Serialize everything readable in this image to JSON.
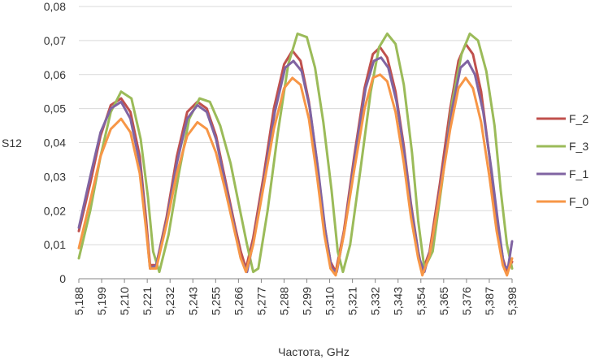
{
  "chart_data": {
    "type": "line",
    "title": "",
    "xlabel": "Частота, GHz",
    "ylabel": "S12",
    "xlim": [
      5.188,
      5.398
    ],
    "ylim": [
      0,
      0.08
    ],
    "yticks": [
      "0",
      "0,01",
      "0,02",
      "0,03",
      "0,04",
      "0,05",
      "0,06",
      "0,07",
      "0,08"
    ],
    "xticks": [
      "5,188",
      "5,199",
      "5,210",
      "5,221",
      "5,232",
      "5,243",
      "5,255",
      "5,266",
      "5,277",
      "5,288",
      "5,299",
      "5,310",
      "5,321",
      "5,332",
      "5,343",
      "5,354",
      "5,365",
      "5,376",
      "5,387",
      "5,398"
    ],
    "grid": "horizontal",
    "legend_position": "right",
    "series": [
      {
        "name": "F_2",
        "color": "#c0504d",
        "x": [
          5.188,
          5.1935,
          5.1985,
          5.2035,
          5.2085,
          5.213,
          5.2175,
          5.2205,
          5.2225,
          5.2255,
          5.2305,
          5.2355,
          5.2405,
          5.2455,
          5.25,
          5.2545,
          5.259,
          5.2635,
          5.2665,
          5.269,
          5.2725,
          5.2775,
          5.2825,
          5.2875,
          5.2915,
          5.2955,
          5.2995,
          5.3035,
          5.307,
          5.31,
          5.3125,
          5.3165,
          5.3215,
          5.3265,
          5.3305,
          5.334,
          5.3375,
          5.3415,
          5.3455,
          5.349,
          5.3525,
          5.3545,
          5.358,
          5.363,
          5.368,
          5.372,
          5.3755,
          5.379,
          5.383,
          5.387,
          5.3905,
          5.3935,
          5.3955,
          5.398
        ],
        "y": [
          0.014,
          0.028,
          0.042,
          0.051,
          0.053,
          0.049,
          0.036,
          0.018,
          0.004,
          0.004,
          0.018,
          0.036,
          0.049,
          0.052,
          0.05,
          0.042,
          0.029,
          0.016,
          0.008,
          0.003,
          0.012,
          0.03,
          0.05,
          0.063,
          0.067,
          0.064,
          0.052,
          0.034,
          0.016,
          0.005,
          0.002,
          0.014,
          0.036,
          0.056,
          0.066,
          0.068,
          0.065,
          0.055,
          0.039,
          0.022,
          0.008,
          0.002,
          0.008,
          0.028,
          0.05,
          0.064,
          0.069,
          0.066,
          0.055,
          0.036,
          0.018,
          0.006,
          0.002,
          0.005
        ]
      },
      {
        "name": "F_3",
        "color": "#9bbb59",
        "x": [
          5.188,
          5.1935,
          5.1985,
          5.2035,
          5.2085,
          5.2135,
          5.218,
          5.2215,
          5.224,
          5.227,
          5.2315,
          5.2365,
          5.2415,
          5.2465,
          5.2515,
          5.2565,
          5.2615,
          5.2655,
          5.2695,
          5.2725,
          5.275,
          5.2795,
          5.2845,
          5.2895,
          5.294,
          5.2985,
          5.3025,
          5.3065,
          5.3105,
          5.3135,
          5.316,
          5.3195,
          5.3245,
          5.3295,
          5.3335,
          5.3375,
          5.3415,
          5.3455,
          5.3495,
          5.3525,
          5.3555,
          5.3595,
          5.364,
          5.369,
          5.3735,
          5.3775,
          5.3815,
          5.3855,
          5.3895,
          5.3925,
          5.3955,
          5.398
        ],
        "y": [
          0.006,
          0.02,
          0.036,
          0.049,
          0.055,
          0.053,
          0.041,
          0.024,
          0.008,
          0.002,
          0.013,
          0.031,
          0.047,
          0.053,
          0.052,
          0.045,
          0.034,
          0.022,
          0.01,
          0.002,
          0.003,
          0.02,
          0.043,
          0.063,
          0.072,
          0.071,
          0.062,
          0.046,
          0.026,
          0.008,
          0.002,
          0.01,
          0.032,
          0.055,
          0.068,
          0.072,
          0.069,
          0.057,
          0.037,
          0.017,
          0.003,
          0.008,
          0.028,
          0.052,
          0.066,
          0.072,
          0.07,
          0.061,
          0.045,
          0.026,
          0.01,
          0.003
        ]
      },
      {
        "name": "F_1",
        "color": "#8064a2",
        "x": [
          5.188,
          5.1935,
          5.1985,
          5.2035,
          5.2085,
          5.213,
          5.2175,
          5.2205,
          5.2225,
          5.2255,
          5.2305,
          5.2355,
          5.2405,
          5.2455,
          5.25,
          5.2545,
          5.259,
          5.2635,
          5.2665,
          5.2695,
          5.273,
          5.278,
          5.283,
          5.288,
          5.292,
          5.296,
          5.3,
          5.304,
          5.3075,
          5.3105,
          5.313,
          5.317,
          5.322,
          5.327,
          5.331,
          5.3345,
          5.338,
          5.342,
          5.346,
          5.3495,
          5.353,
          5.3555,
          5.359,
          5.364,
          5.369,
          5.373,
          5.3765,
          5.38,
          5.384,
          5.388,
          5.3915,
          5.394,
          5.396,
          5.398
        ],
        "y": [
          0.015,
          0.03,
          0.043,
          0.05,
          0.052,
          0.047,
          0.034,
          0.016,
          0.003,
          0.004,
          0.017,
          0.034,
          0.047,
          0.051,
          0.049,
          0.041,
          0.028,
          0.015,
          0.006,
          0.002,
          0.012,
          0.03,
          0.049,
          0.062,
          0.064,
          0.061,
          0.05,
          0.032,
          0.014,
          0.003,
          0.002,
          0.015,
          0.037,
          0.056,
          0.064,
          0.065,
          0.062,
          0.052,
          0.036,
          0.019,
          0.006,
          0.002,
          0.01,
          0.03,
          0.05,
          0.062,
          0.064,
          0.06,
          0.049,
          0.032,
          0.015,
          0.004,
          0.003,
          0.011
        ]
      },
      {
        "name": "F_0",
        "color": "#f79646",
        "x": [
          5.188,
          5.1935,
          5.1985,
          5.2035,
          5.2085,
          5.213,
          5.2175,
          5.2205,
          5.2225,
          5.2255,
          5.2305,
          5.2355,
          5.2405,
          5.2455,
          5.25,
          5.2545,
          5.259,
          5.2635,
          5.2665,
          5.269,
          5.2725,
          5.2775,
          5.2825,
          5.2875,
          5.2915,
          5.2955,
          5.2995,
          5.3035,
          5.307,
          5.31,
          5.3125,
          5.3165,
          5.3215,
          5.3265,
          5.3305,
          5.334,
          5.3375,
          5.3415,
          5.3455,
          5.349,
          5.3525,
          5.3545,
          5.358,
          5.363,
          5.368,
          5.372,
          5.3755,
          5.379,
          5.383,
          5.387,
          5.3905,
          5.3935,
          5.3955,
          5.398
        ],
        "y": [
          0.009,
          0.023,
          0.036,
          0.044,
          0.047,
          0.043,
          0.031,
          0.015,
          0.003,
          0.003,
          0.016,
          0.031,
          0.042,
          0.046,
          0.044,
          0.037,
          0.026,
          0.014,
          0.006,
          0.002,
          0.01,
          0.027,
          0.044,
          0.056,
          0.059,
          0.057,
          0.047,
          0.03,
          0.013,
          0.003,
          0.001,
          0.013,
          0.032,
          0.05,
          0.059,
          0.06,
          0.058,
          0.049,
          0.034,
          0.018,
          0.006,
          0.001,
          0.007,
          0.025,
          0.044,
          0.056,
          0.059,
          0.056,
          0.046,
          0.03,
          0.014,
          0.004,
          0.001,
          0.006
        ]
      }
    ]
  }
}
